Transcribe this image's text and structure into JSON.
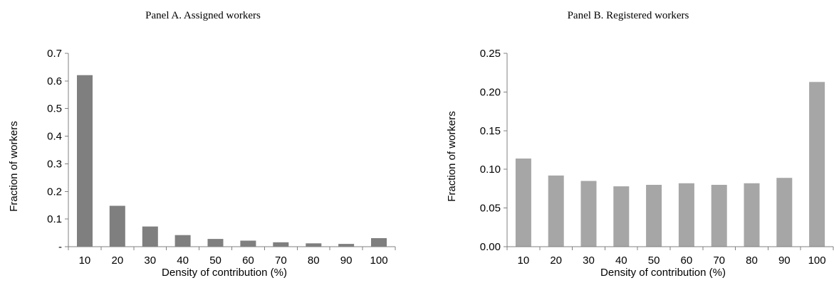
{
  "chart_data": [
    {
      "type": "bar",
      "title": "Panel A. Assigned workers",
      "xlabel": "Density of contribution (%)",
      "ylabel": "Fraction of workers",
      "categories": [
        "10",
        "20",
        "30",
        "40",
        "50",
        "60",
        "70",
        "80",
        "90",
        "100"
      ],
      "values": [
        0.621,
        0.148,
        0.073,
        0.042,
        0.028,
        0.022,
        0.016,
        0.012,
        0.01,
        0.031
      ],
      "ylim": [
        0,
        0.7
      ],
      "yticks": [
        "-",
        "0.1",
        "0.2",
        "0.3",
        "0.4",
        "0.5",
        "0.6",
        "0.7"
      ],
      "bar_color": "#7f7f7f",
      "grid": false,
      "legend": "none"
    },
    {
      "type": "bar",
      "title": "Panel B. Registered workers",
      "xlabel": "Density of contribution (%)",
      "ylabel": "Fraction of workers",
      "categories": [
        "10",
        "20",
        "30",
        "40",
        "50",
        "60",
        "70",
        "80",
        "90",
        "100"
      ],
      "values": [
        0.114,
        0.092,
        0.085,
        0.078,
        0.08,
        0.082,
        0.08,
        0.082,
        0.089,
        0.213
      ],
      "ylim": [
        0,
        0.25
      ],
      "yticks": [
        "0.00",
        "0.05",
        "0.10",
        "0.15",
        "0.20",
        "0.25"
      ],
      "bar_color": "#a6a6a6",
      "grid": false,
      "legend": "none"
    }
  ]
}
